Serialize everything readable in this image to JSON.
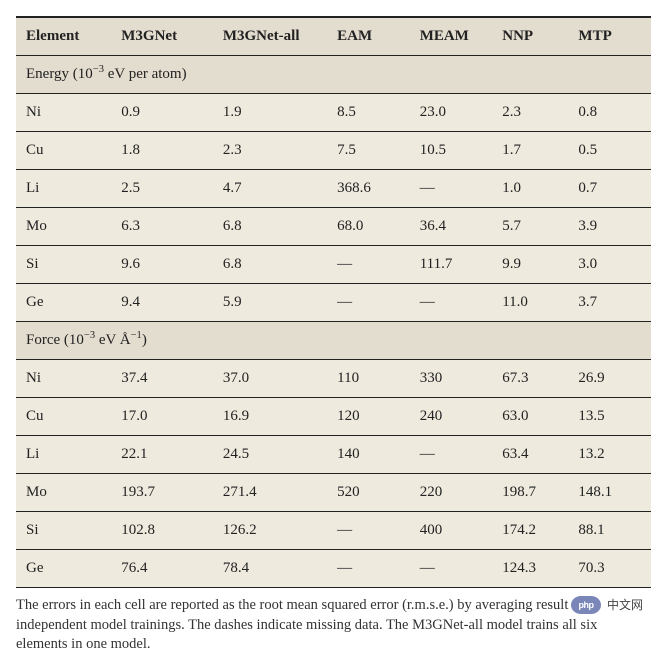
{
  "styling": {
    "header_bg": "#e3ddcf",
    "section_bg": "#e3ddcf",
    "row_bg": "#eeeade",
    "border_color": "#222222",
    "text_color": "#222222",
    "font_family": "Georgia, serif",
    "header_fontsize_pt": 11,
    "cell_fontsize_pt": 11,
    "caption_fontsize_pt": 10.5,
    "col_widths_pct": [
      15,
      16,
      18,
      13,
      13,
      12,
      13
    ]
  },
  "columns": [
    "Element",
    "M3GNet",
    "M3GNet-all",
    "EAM",
    "MEAM",
    "NNP",
    "MTP"
  ],
  "sections": [
    {
      "label_html": "Energy (10<sup>−3</sup> eV per atom)",
      "rows": [
        [
          "Ni",
          "0.9",
          "1.9",
          "8.5",
          "23.0",
          "2.3",
          "0.8"
        ],
        [
          "Cu",
          "1.8",
          "2.3",
          "7.5",
          "10.5",
          "1.7",
          "0.5"
        ],
        [
          "Li",
          "2.5",
          "4.7",
          "368.6",
          "—",
          "1.0",
          "0.7"
        ],
        [
          "Mo",
          "6.3",
          "6.8",
          "68.0",
          "36.4",
          "5.7",
          "3.9"
        ],
        [
          "Si",
          "9.6",
          "6.8",
          "—",
          "111.7",
          "9.9",
          "3.0"
        ],
        [
          "Ge",
          "9.4",
          "5.9",
          "—",
          "—",
          "11.0",
          "3.7"
        ]
      ]
    },
    {
      "label_html": "Force (10<sup>−3</sup> eV Å<sup>−1</sup>)",
      "rows": [
        [
          "Ni",
          "37.4",
          "37.0",
          "110",
          "330",
          "67.3",
          "26.9"
        ],
        [
          "Cu",
          "17.0",
          "16.9",
          "120",
          "240",
          "63.0",
          "13.5"
        ],
        [
          "Li",
          "22.1",
          "24.5",
          "140",
          "—",
          "63.4",
          "13.2"
        ],
        [
          "Mo",
          "193.7",
          "271.4",
          "520",
          "220",
          "198.7",
          "148.1"
        ],
        [
          "Si",
          "102.8",
          "126.2",
          "—",
          "400",
          "174.2",
          "88.1"
        ],
        [
          "Ge",
          "76.4",
          "78.4",
          "—",
          "—",
          "124.3",
          "70.3"
        ]
      ]
    }
  ],
  "caption": "The errors in each cell are reported as the root mean squared error (r.m.s.e.) by averaging results from three independent model trainings. The dashes indicate missing data. The M3GNet-all model trains all six elements in one model.",
  "badge": {
    "logo_text": "php",
    "label": "中文网"
  }
}
